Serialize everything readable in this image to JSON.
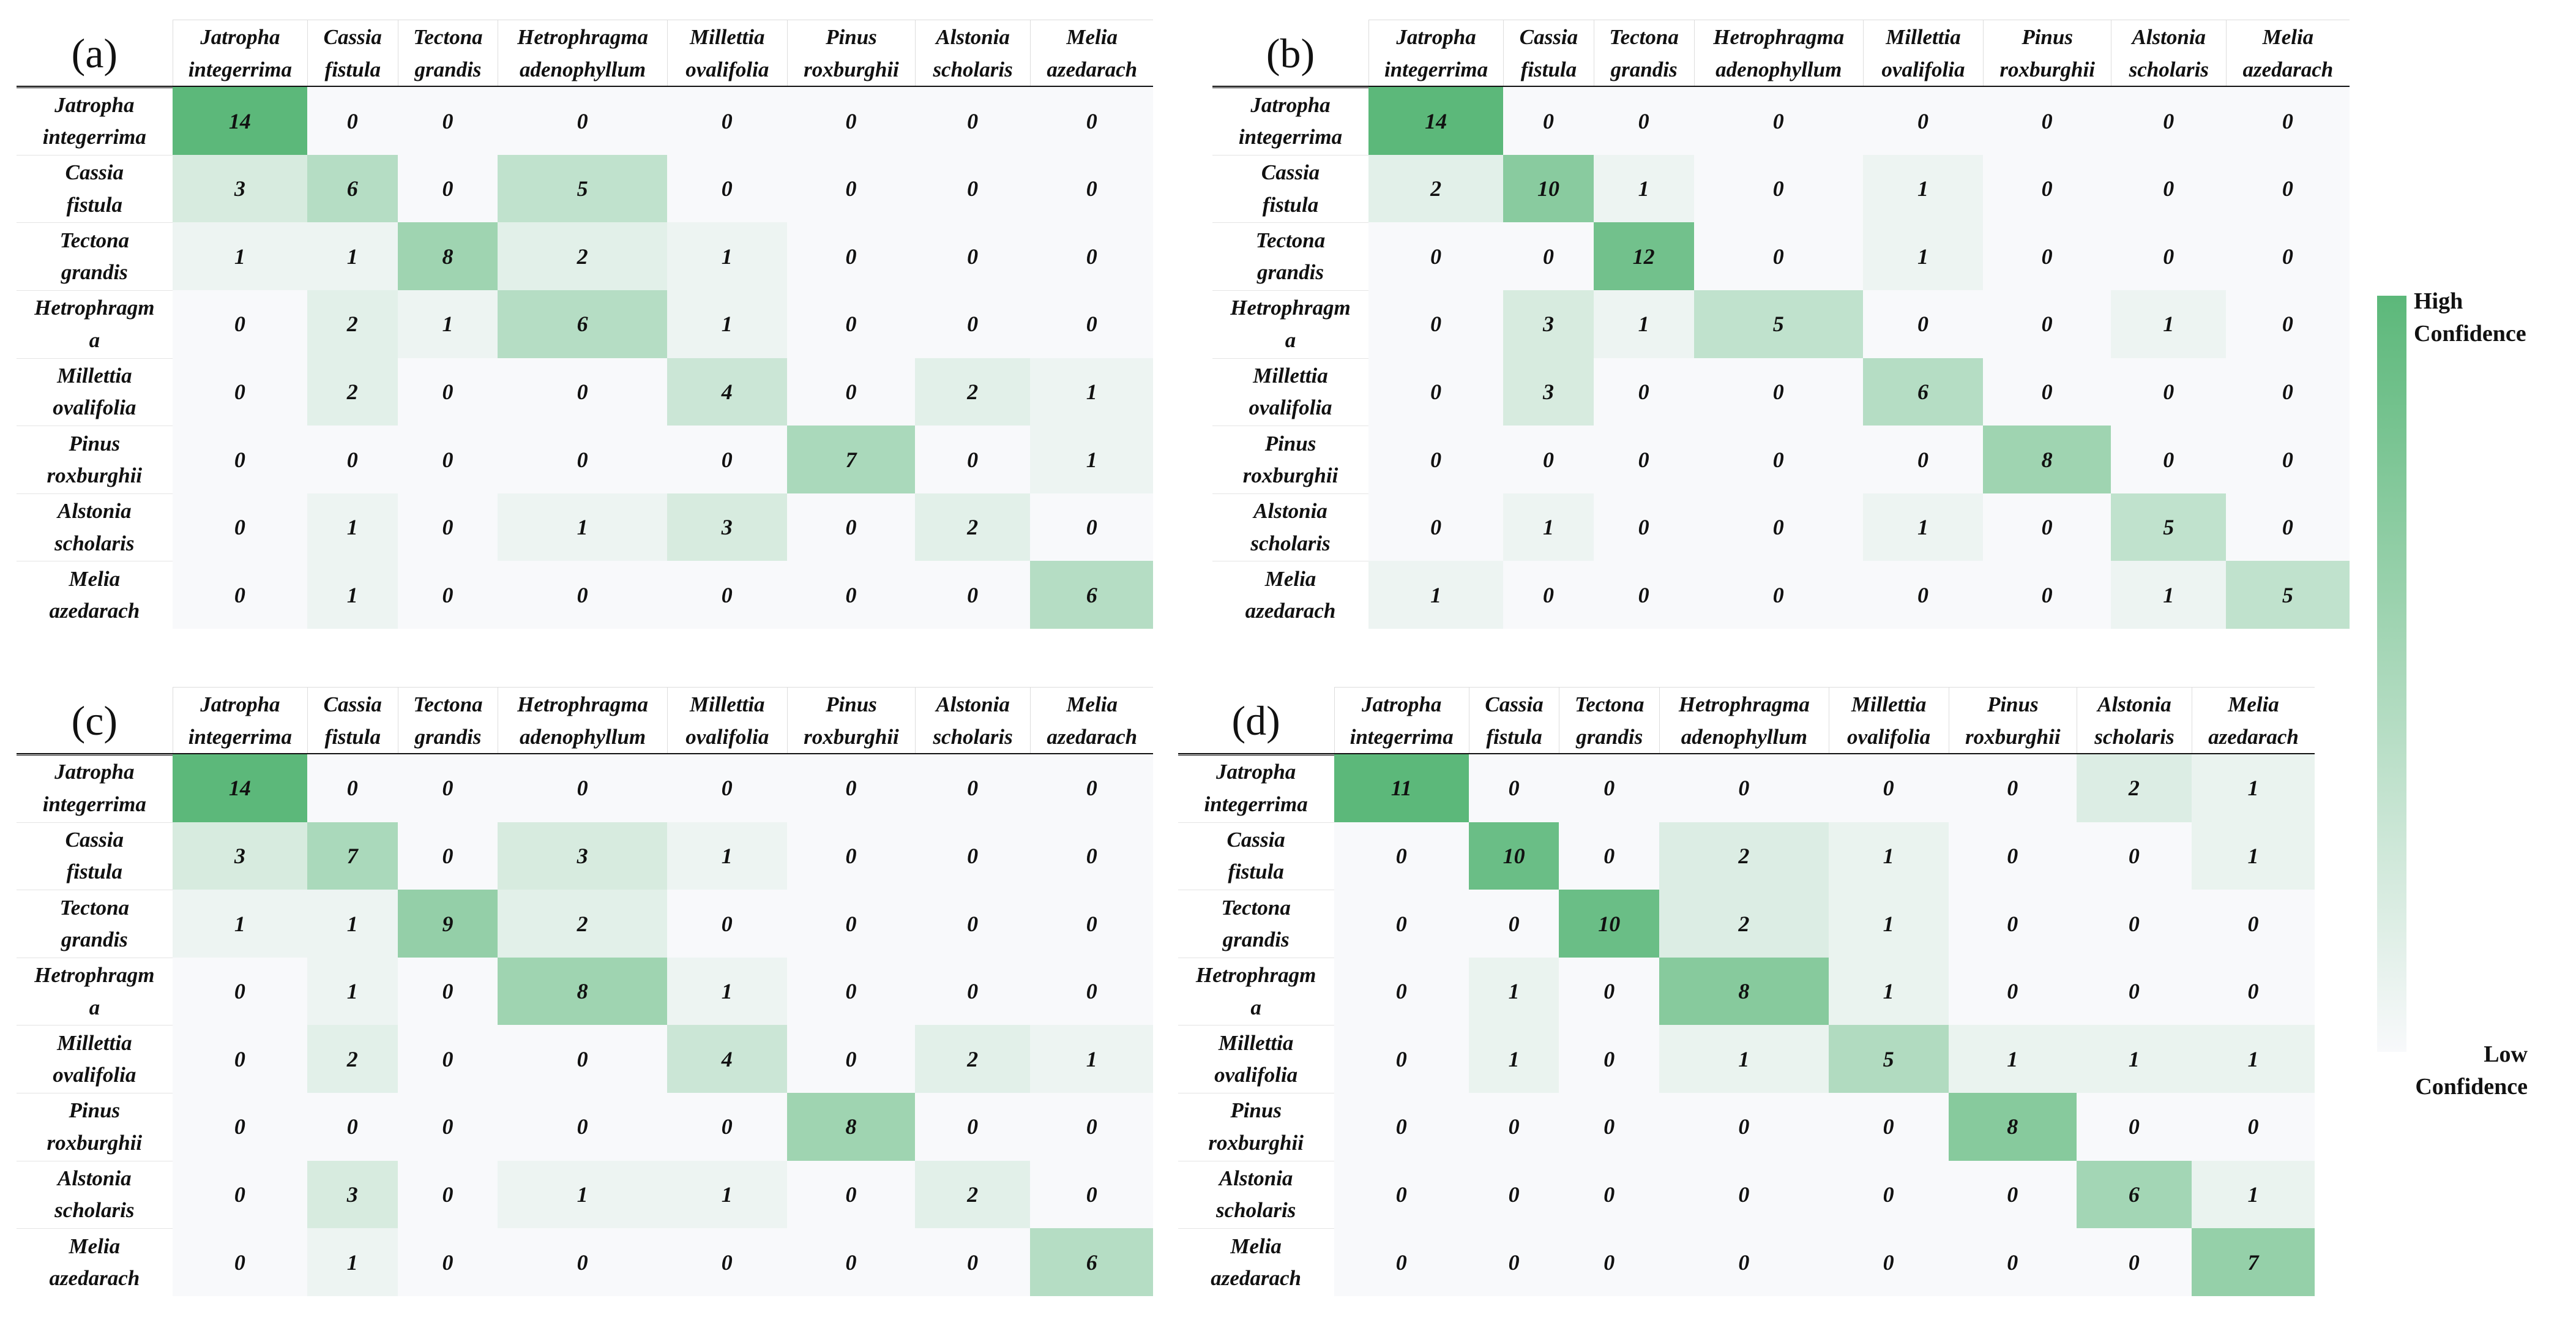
{
  "chart_data": [
    {
      "type": "heatmap",
      "title": "(a)",
      "x_categories": [
        "Jatropha\nintegerrima",
        "Cassia\nfistula",
        "Tectona\ngrandis",
        "Hetrophragma\nadenophyllum",
        "Millettia\novalifolia",
        "Pinus\nroxburghii",
        "Alstonia\nscholaris",
        "Melia\nazedarach"
      ],
      "y_categories": [
        "Jatropha\nintegerrima",
        "Cassia\nfistula",
        "Tectona\ngrandis",
        "Hetrophragm\na",
        "Millettia\novalifolia",
        "Pinus\nroxburghii",
        "Alstonia\nscholaris",
        "Melia\nazedarach"
      ],
      "values": [
        [
          14,
          0,
          0,
          0,
          0,
          0,
          0,
          0
        ],
        [
          3,
          6,
          0,
          5,
          0,
          0,
          0,
          0
        ],
        [
          1,
          1,
          8,
          2,
          1,
          0,
          0,
          0
        ],
        [
          0,
          2,
          1,
          6,
          1,
          0,
          0,
          0
        ],
        [
          0,
          2,
          0,
          0,
          4,
          0,
          2,
          1
        ],
        [
          0,
          0,
          0,
          0,
          0,
          7,
          0,
          1
        ],
        [
          0,
          1,
          0,
          1,
          3,
          0,
          2,
          0
        ],
        [
          0,
          1,
          0,
          0,
          0,
          0,
          0,
          6
        ]
      ]
    },
    {
      "type": "heatmap",
      "title": "(b)",
      "x_categories": [
        "Jatropha\nintegerrima",
        "Cassia\nfistula",
        "Tectona\ngrandis",
        "Hetrophragma\nadenophyllum",
        "Millettia\novalifolia",
        "Pinus\nroxburghii",
        "Alstonia\nscholaris",
        "Melia\nazedarach"
      ],
      "y_categories": [
        "Jatropha\nintegerrima",
        "Cassia\nfistula",
        "Tectona\ngrandis",
        "Hetrophragm\na",
        "Millettia\novalifolia",
        "Pinus\nroxburghii",
        "Alstonia\nscholaris",
        "Melia\nazedarach"
      ],
      "values": [
        [
          14,
          0,
          0,
          0,
          0,
          0,
          0,
          0
        ],
        [
          2,
          10,
          1,
          0,
          1,
          0,
          0,
          0
        ],
        [
          0,
          0,
          12,
          0,
          1,
          0,
          0,
          0
        ],
        [
          0,
          3,
          1,
          5,
          0,
          0,
          1,
          0
        ],
        [
          0,
          3,
          0,
          0,
          6,
          0,
          0,
          0
        ],
        [
          0,
          0,
          0,
          0,
          0,
          8,
          0,
          0
        ],
        [
          0,
          1,
          0,
          0,
          1,
          0,
          5,
          0
        ],
        [
          1,
          0,
          0,
          0,
          0,
          0,
          1,
          5
        ]
      ]
    },
    {
      "type": "heatmap",
      "title": "(c)",
      "x_categories": [
        "Jatropha\nintegerrima",
        "Cassia\nfistula",
        "Tectona\ngrandis",
        "Hetrophragma\nadenophyllum",
        "Millettia\novalifolia",
        "Pinus\nroxburghii",
        "Alstonia\nscholaris",
        "Melia\nazedarach"
      ],
      "y_categories": [
        "Jatropha\nintegerrima",
        "Cassia\nfistula",
        "Tectona\ngrandis",
        "Hetrophragm\na",
        "Millettia\novalifolia",
        "Pinus\nroxburghii",
        "Alstonia\nscholaris",
        "Melia\nazedarach"
      ],
      "values": [
        [
          14,
          0,
          0,
          0,
          0,
          0,
          0,
          0
        ],
        [
          3,
          7,
          0,
          3,
          1,
          0,
          0,
          0
        ],
        [
          1,
          1,
          9,
          2,
          0,
          0,
          0,
          0
        ],
        [
          0,
          1,
          0,
          8,
          1,
          0,
          0,
          0
        ],
        [
          0,
          2,
          0,
          0,
          4,
          0,
          2,
          1
        ],
        [
          0,
          0,
          0,
          0,
          0,
          8,
          0,
          0
        ],
        [
          0,
          3,
          0,
          1,
          1,
          0,
          2,
          0
        ],
        [
          0,
          1,
          0,
          0,
          0,
          0,
          0,
          6
        ]
      ]
    },
    {
      "type": "heatmap",
      "title": "(d)",
      "x_categories": [
        "Jatropha\nintegerrima",
        "Cassia\nfistula",
        "Tectona\ngrandis",
        "Hetrophragma\nadenophyllum",
        "Millettia\novalifolia",
        "Pinus\nroxburghii",
        "Alstonia\nscholaris",
        "Melia\nazedarach"
      ],
      "y_categories": [
        "Jatropha\nintegerrima",
        "Cassia\nfistula",
        "Tectona\ngrandis",
        "Hetrophragm\na",
        "Millettia\novalifolia",
        "Pinus\nroxburghii",
        "Alstonia\nscholaris",
        "Melia\nazedarach"
      ],
      "values": [
        [
          11,
          0,
          0,
          0,
          0,
          0,
          2,
          1
        ],
        [
          0,
          10,
          0,
          2,
          1,
          0,
          0,
          1
        ],
        [
          0,
          0,
          10,
          2,
          1,
          0,
          0,
          0
        ],
        [
          0,
          1,
          0,
          8,
          1,
          0,
          0,
          0
        ],
        [
          0,
          1,
          0,
          1,
          5,
          1,
          1,
          1
        ],
        [
          0,
          0,
          0,
          0,
          0,
          8,
          0,
          0
        ],
        [
          0,
          0,
          0,
          0,
          0,
          0,
          6,
          1
        ],
        [
          0,
          0,
          0,
          0,
          0,
          0,
          0,
          7
        ]
      ]
    }
  ],
  "colorbar": {
    "high_label": "High\nConfidence",
    "low_label": "Low\nConfidence",
    "low_color": "#f8f9fb",
    "high_color": "#5cb87a"
  }
}
